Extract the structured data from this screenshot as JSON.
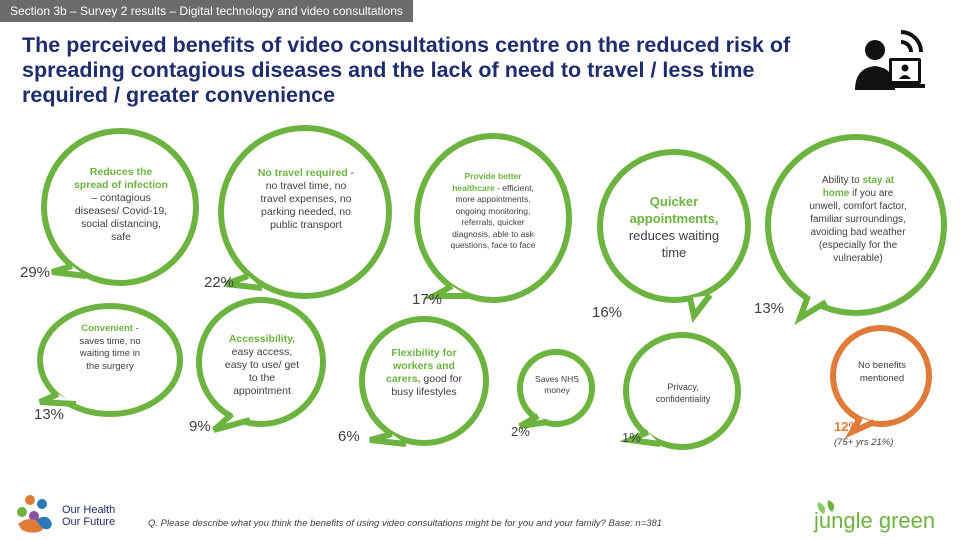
{
  "header": {
    "section_tag": "Section 3b – Survey 2 results – Digital technology and video consultations",
    "title": "The perceived benefits of video consultations centre on the reduced risk of spreading contagious diseases and the lack of need to travel / less time required / greater convenience",
    "icon": "video-consultation-icon"
  },
  "colors": {
    "green": "#6cb33f",
    "orange": "#e07b39",
    "title_navy": "#1f2d6e",
    "text_grey": "#404040"
  },
  "bubbles": [
    {
      "id": "spread",
      "heading": "Reduces the spread of infection",
      "body": " – contagious diseases/ Covid-19, social distancing, safe",
      "percent": "29%"
    },
    {
      "id": "travel",
      "heading": "No travel required",
      "body": " - no travel time, no travel expenses, no parking needed, no public transport",
      "percent": "22%"
    },
    {
      "id": "healthcare",
      "heading": "Provide better healthcare",
      "body": " - efficient, more appointments, ongoing monitoring, referrals, quicker diagnosis, able to ask questions, face to face",
      "percent": "17%"
    },
    {
      "id": "quicker",
      "heading": "Quicker appointments,",
      "body": " reduces waiting time",
      "percent": "16%"
    },
    {
      "id": "home",
      "prefix": "Ability to ",
      "heading": "stay at home",
      "body": " if you are unwell, comfort factor, familiar surroundings, avoiding bad weather (especially for the vulnerable)",
      "percent": "13%"
    },
    {
      "id": "convenient",
      "heading": "Convenient",
      "body": " - saves time, no waiting time in the surgery",
      "percent": "13%"
    },
    {
      "id": "access",
      "heading": "Accessibility,",
      "body": " easy access, easy to use/ get to the appointment",
      "percent": "9%"
    },
    {
      "id": "flex",
      "heading": "Flexibility for workers and carers,",
      "body": " good for busy lifestyles",
      "percent": "6%"
    },
    {
      "id": "nhs",
      "heading": "",
      "body": "Saves NHS money",
      "percent": "2%"
    },
    {
      "id": "privacy",
      "heading": "",
      "body": "Privacy, confidentiality",
      "percent": "1%"
    },
    {
      "id": "none",
      "heading": "",
      "body": "No benefits mentioned",
      "percent": "12%",
      "note": "(75+ yrs 21%)"
    }
  ],
  "footer": {
    "question": "Q. Please describe what you think the benefits of using video consultations might be for you and your family? Base: n=381",
    "logo_left": [
      "Our Health",
      "Our Future"
    ],
    "logo_right": "jungle green"
  }
}
